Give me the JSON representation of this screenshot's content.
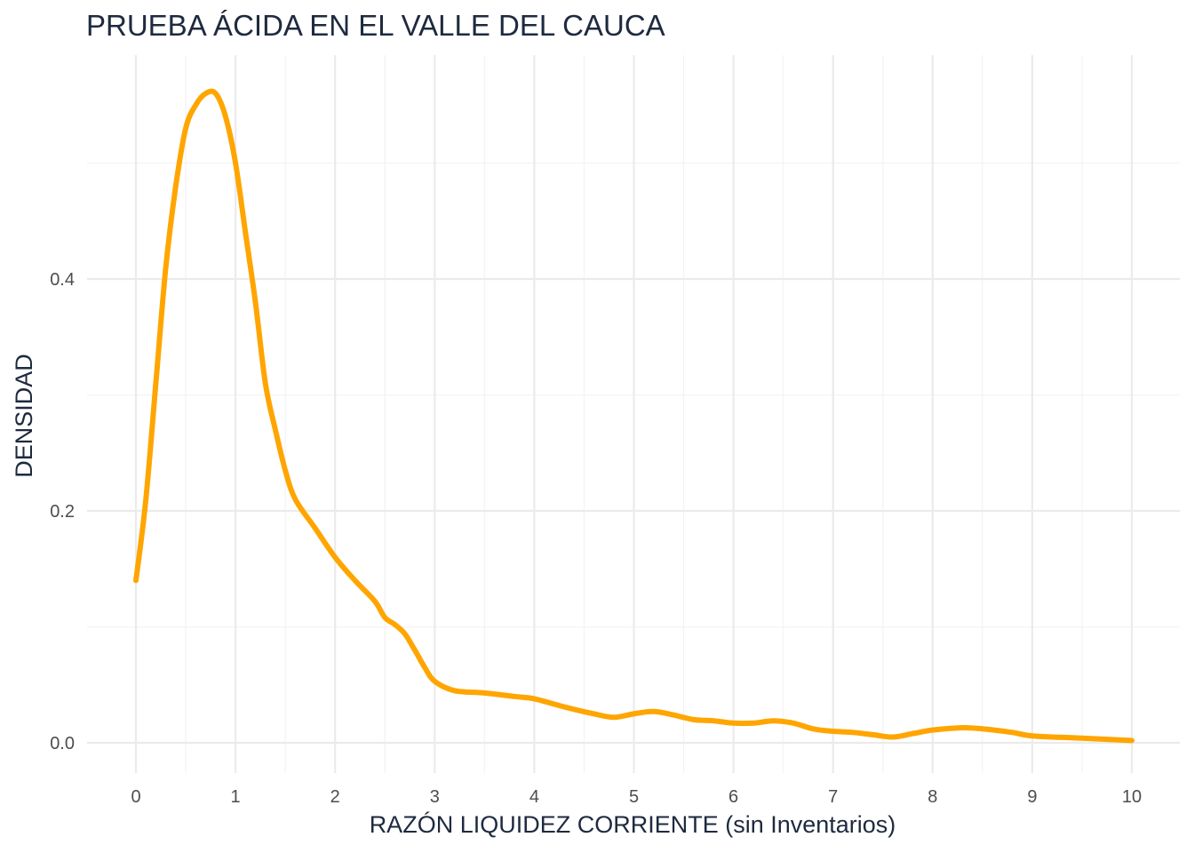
{
  "chart_data": {
    "type": "line",
    "title": "PRUEBA ÁCIDA EN EL VALLE DEL CAUCA",
    "xlabel": "RAZÓN LIQUIDEZ CORRIENTE (sin Inventarios)",
    "ylabel": "DENSIDAD",
    "xlim": [
      0,
      10
    ],
    "ylim": [
      0,
      0.56
    ],
    "x_ticks": [
      0,
      1,
      2,
      3,
      4,
      5,
      6,
      7,
      8,
      9,
      10
    ],
    "x_tick_labels": [
      "0",
      "1",
      "2",
      "3",
      "4",
      "5",
      "6",
      "7",
      "8",
      "9",
      "10"
    ],
    "y_ticks": [
      0.0,
      0.2,
      0.4
    ],
    "y_tick_labels": [
      "0.0",
      "0.2",
      "0.4"
    ],
    "grid": true,
    "line_color": "#FFA500",
    "series": [
      {
        "x": [
          0.0,
          0.1,
          0.2,
          0.3,
          0.4,
          0.5,
          0.6,
          0.7,
          0.8,
          0.9,
          1.0,
          1.1,
          1.2,
          1.3,
          1.4,
          1.5,
          1.6,
          1.8,
          2.0,
          2.2,
          2.4,
          2.5,
          2.6,
          2.7,
          2.8,
          2.9,
          3.0,
          3.2,
          3.5,
          3.8,
          4.0,
          4.3,
          4.6,
          4.8,
          5.0,
          5.2,
          5.4,
          5.6,
          5.8,
          6.0,
          6.2,
          6.4,
          6.6,
          6.8,
          7.0,
          7.2,
          7.4,
          7.6,
          7.8,
          8.0,
          8.3,
          8.5,
          8.8,
          9.0,
          9.5,
          10.0
        ],
        "values": [
          0.14,
          0.21,
          0.31,
          0.41,
          0.48,
          0.53,
          0.55,
          0.56,
          0.56,
          0.54,
          0.5,
          0.44,
          0.38,
          0.31,
          0.27,
          0.235,
          0.21,
          0.185,
          0.16,
          0.14,
          0.122,
          0.108,
          0.102,
          0.094,
          0.08,
          0.065,
          0.053,
          0.045,
          0.043,
          0.04,
          0.038,
          0.031,
          0.025,
          0.022,
          0.025,
          0.027,
          0.024,
          0.02,
          0.019,
          0.017,
          0.017,
          0.019,
          0.017,
          0.012,
          0.01,
          0.009,
          0.007,
          0.005,
          0.008,
          0.011,
          0.013,
          0.012,
          0.009,
          0.006,
          0.004,
          0.002
        ]
      }
    ]
  }
}
